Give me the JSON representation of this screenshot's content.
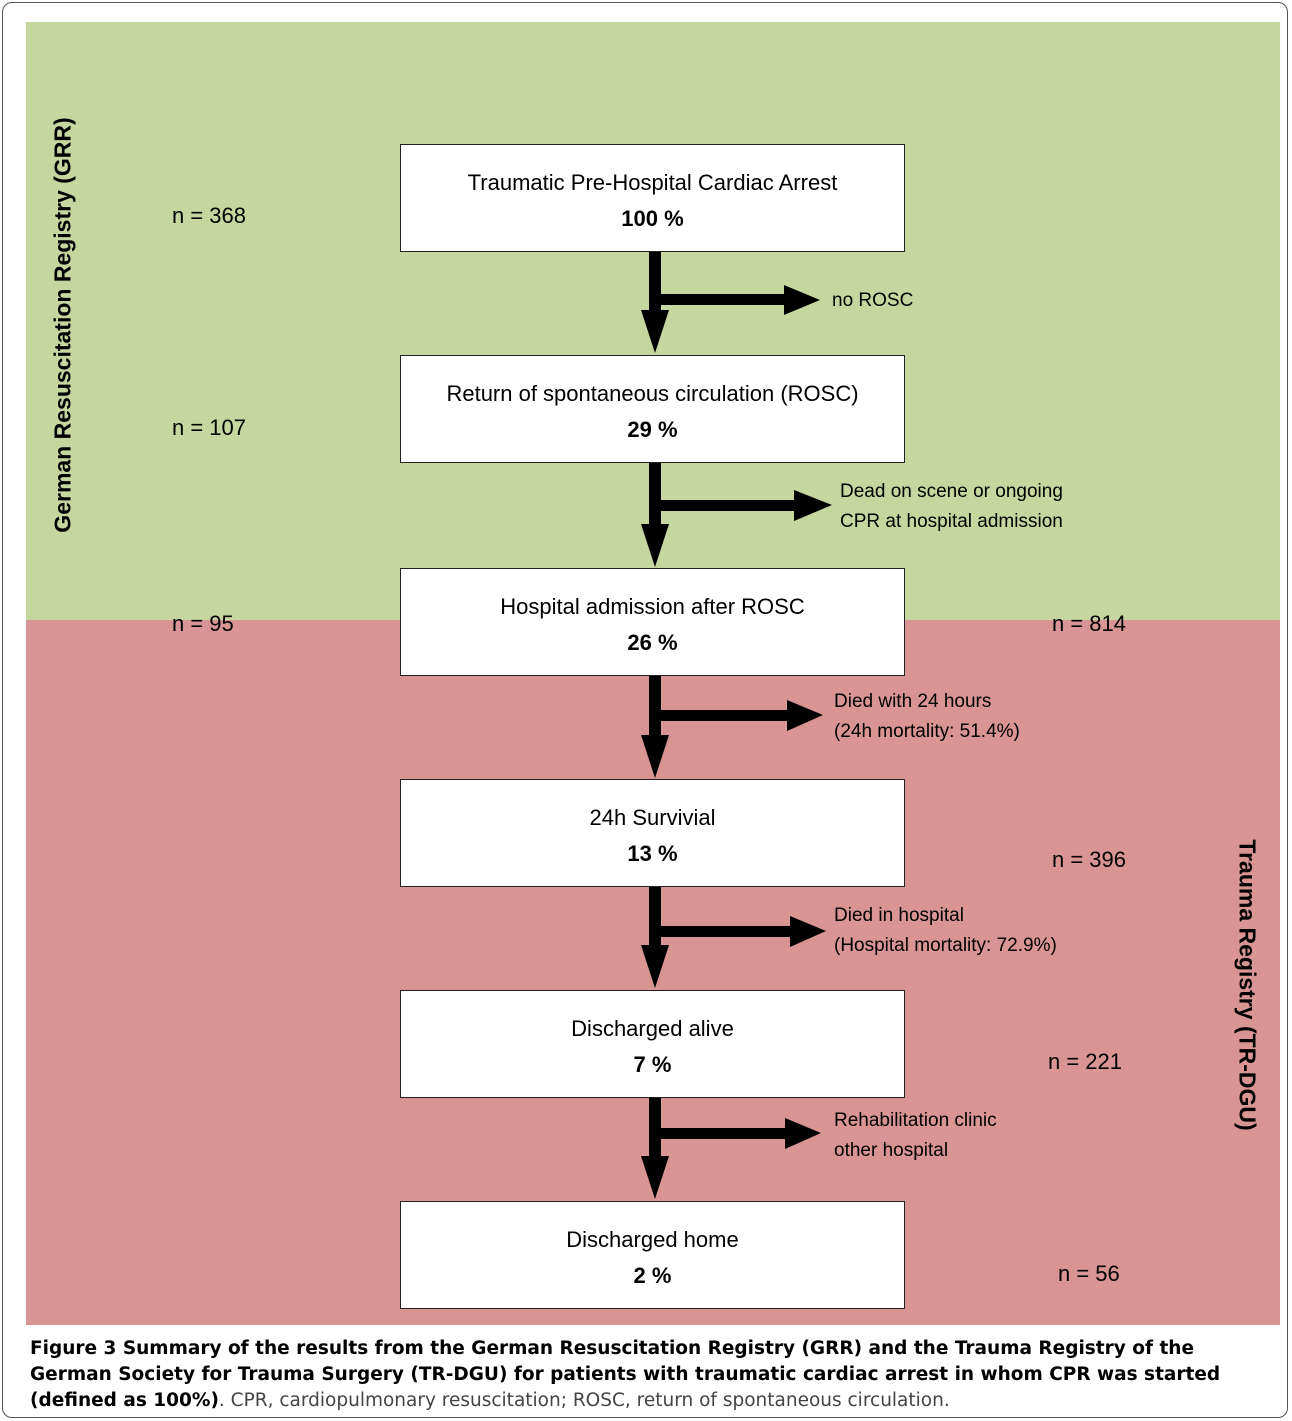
{
  "colors": {
    "grr_band": "#c5d69f",
    "tr_band": "#d99494",
    "arrow": "#000000"
  },
  "registries": {
    "grr_label": "German Resuscitation Registry (GRR)",
    "tr_label": "Trauma Registry (TR-DGU)"
  },
  "steps": [
    {
      "title": "Traumatic Pre-Hospital Cardiac Arrest",
      "percent": "100 %",
      "count": "n = 368"
    },
    {
      "title": "Return of spontaneous circulation (ROSC)",
      "percent": "29 %",
      "count": "n = 107"
    },
    {
      "title": "Hospital admission after ROSC",
      "percent": "26 %",
      "count": "n = 95",
      "count_right": "n = 814"
    },
    {
      "title": "24h Survivial",
      "percent": "13 %",
      "count": "n = 396"
    },
    {
      "title": "Discharged alive",
      "percent": "7 %",
      "count": "n = 221"
    },
    {
      "title": "Discharged home",
      "percent": "2 %",
      "count": "n = 56"
    }
  ],
  "exits": [
    {
      "line1": "no ROSC",
      "line2": ""
    },
    {
      "line1": "Dead on scene or ongoing",
      "line2": "CPR at hospital admission"
    },
    {
      "line1": "Died with 24 hours",
      "line2": "(24h mortality: 51.4%)"
    },
    {
      "line1": "Died in hospital",
      "line2": "(Hospital mortality: 72.9%)"
    },
    {
      "line1": "Rehabilitation clinic",
      "line2": "other hospital"
    }
  ],
  "caption": {
    "bold": "Figure 3 Summary of the results from the German Resuscitation Registry (GRR) and the Trauma Registry of the German Society for Trauma Surgery (TR-DGU) for patients with traumatic cardiac arrest in whom CPR was started (defined as 100%)",
    "rest": ". CPR, cardiopulmonary resuscitation; ROSC, return of spontaneous circulation."
  }
}
